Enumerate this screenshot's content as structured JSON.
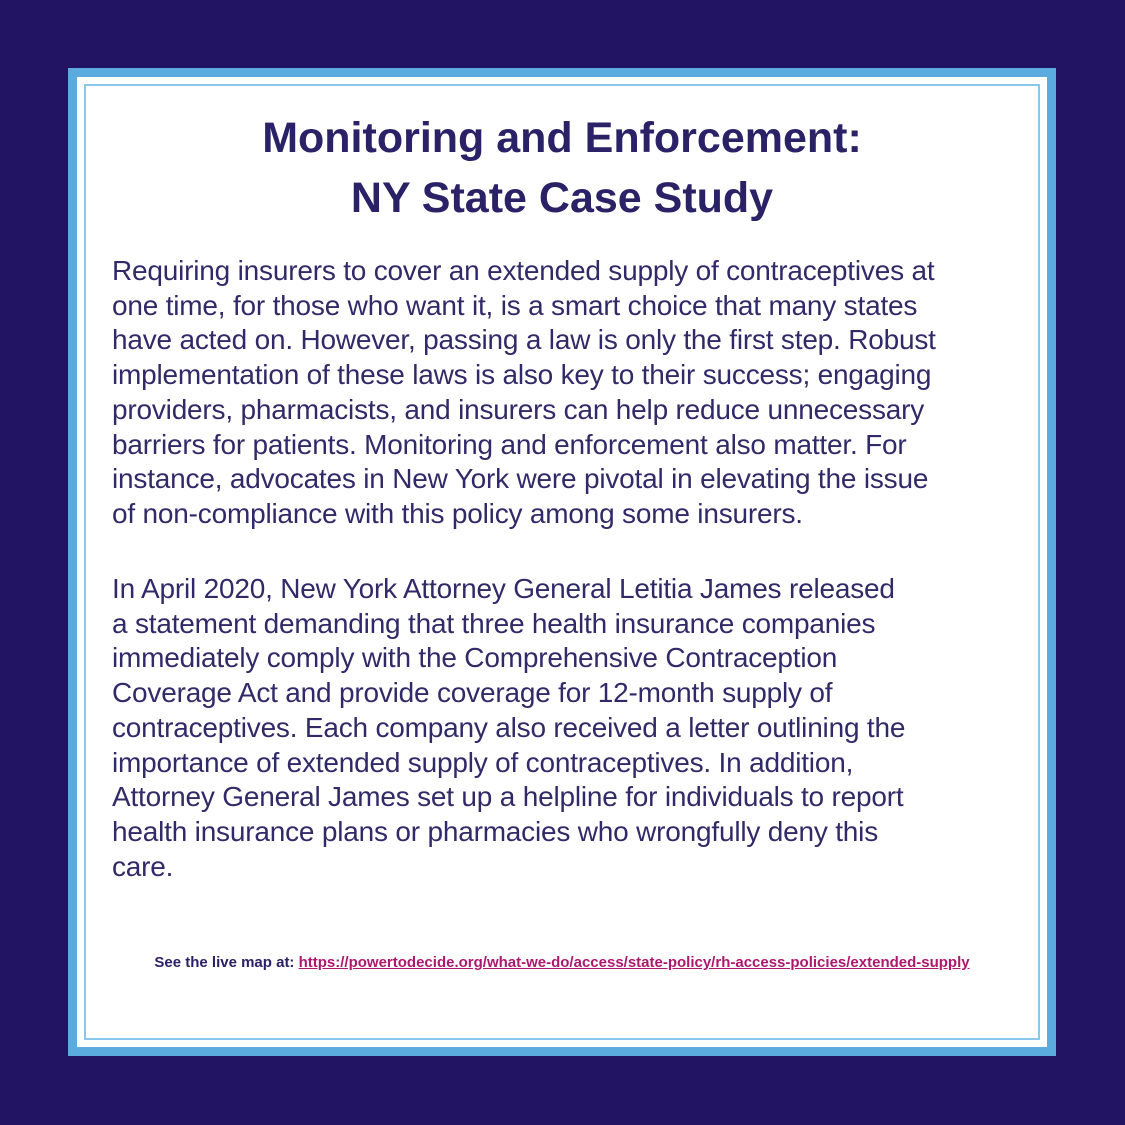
{
  "page": {
    "background_color": "#221463",
    "card_border_color": "#5BABDF",
    "card_inner_border_color": "#8AC7EC",
    "card_background_color": "#FFFFFF"
  },
  "title": {
    "line1": "Monitoring and Enforcement:",
    "line2": "NY State Case Study",
    "color": "#2B2166"
  },
  "body": {
    "text_color": "#322A68",
    "paragraph1": "Requiring insurers to cover an extended supply of contraceptives at\none time, for those who want it, is a smart choice that many states\nhave acted on. However, passing a law is only the first step. Robust\nimplementation of these laws is also key to their success; engaging\nproviders, pharmacists, and insurers can help reduce unnecessary\nbarriers for patients. Monitoring and enforcement also matter. For\ninstance, advocates in New York were pivotal in elevating the issue\nof non-compliance with this policy among some insurers.",
    "paragraph2": "In April 2020, New York Attorney General Letitia James released\na statement demanding that three health insurance companies\nimmediately comply with the Comprehensive Contraception\nCoverage Act and provide coverage for 12-month supply of\ncontraceptives. Each company also received a letter outlining the\nimportance of extended supply of contraceptives. In addition,\nAttorney General James set up a helpline for individuals to report\nhealth insurance plans or pharmacies who wrongfully deny this\ncare."
  },
  "footer": {
    "label": "See the live map at:",
    "link_text": "https://powertodecide.org/what-we-do/access/state-policy/rh-access-policies/extended-supply",
    "link_href": "https://powertodecide.org/what-we-do/access/state-policy/rh-access-policies/extended-supply",
    "link_color": "#AD186E"
  }
}
